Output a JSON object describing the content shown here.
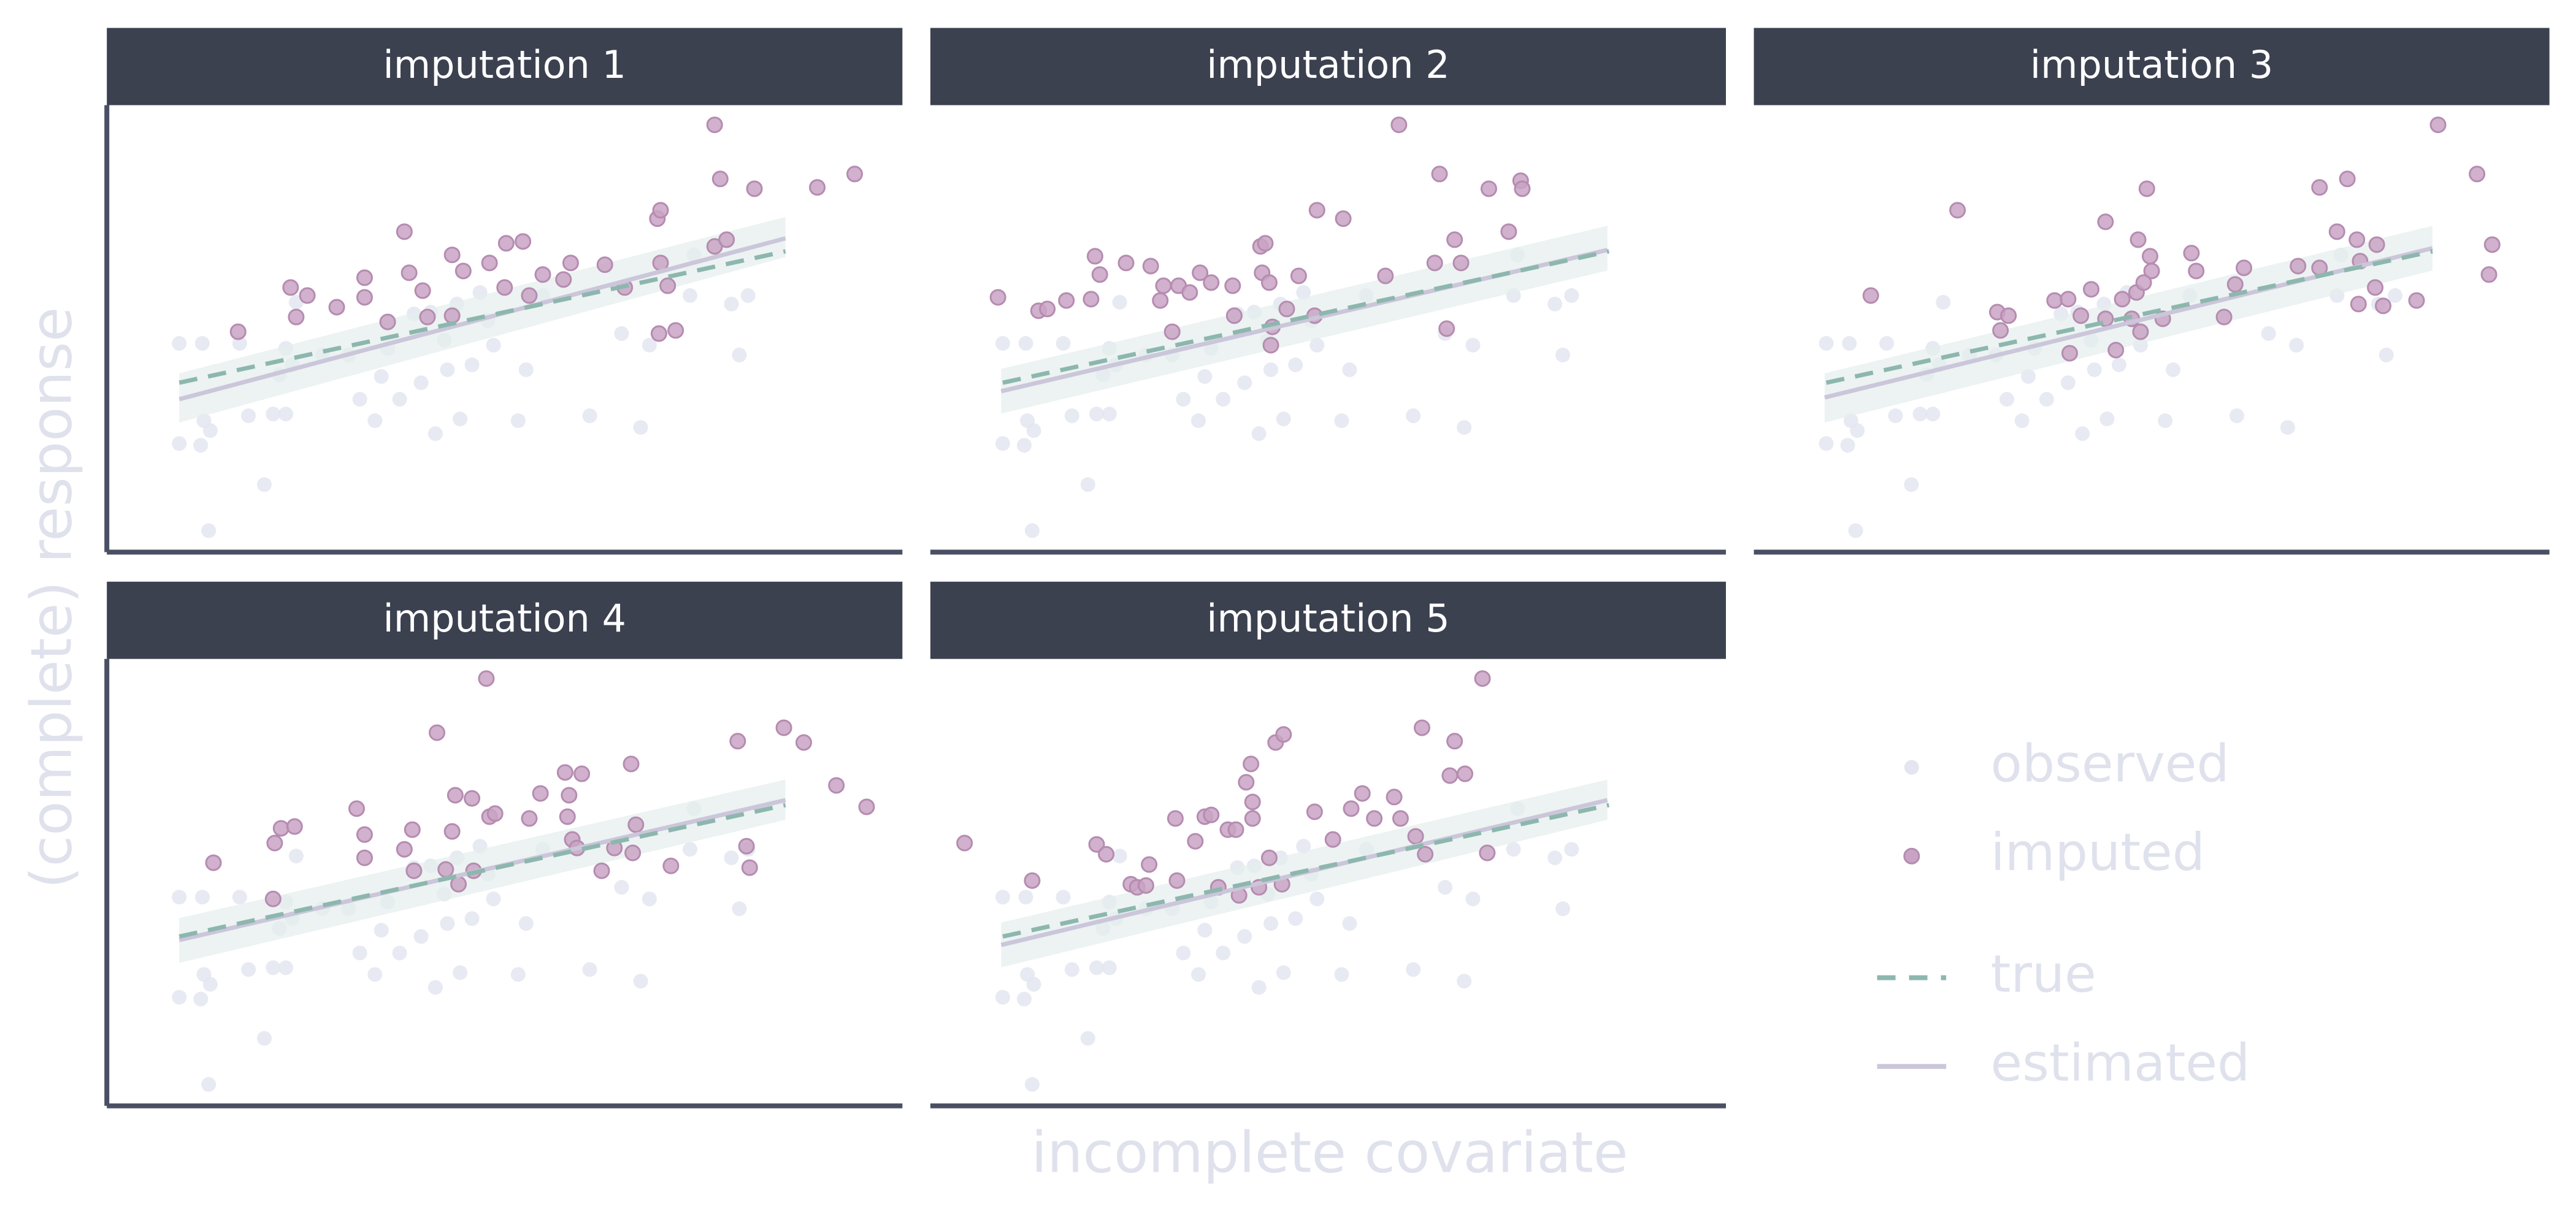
{
  "chart_data": {
    "type": "scatter",
    "x_label": "incomplete covariate",
    "y_label": "(complete) response",
    "xlim": [
      0,
      100
    ],
    "ylim": [
      0,
      100
    ],
    "observed": {
      "name": "observed",
      "color": "#e3e6f0",
      "x": [
        9.1,
        12.0,
        9.1,
        11.8,
        13.0,
        12.2,
        12.8,
        19.8,
        17.8,
        20.9,
        22.5,
        16.7,
        21.7,
        23.3,
        22.5,
        23.8,
        27.1,
        30.4,
        31.8,
        33.7,
        34.5,
        35.3,
        36.8,
        38.6,
        39.5,
        40.7,
        41.3,
        42.4,
        42.8,
        44.0,
        44.4,
        45.9,
        46.9,
        47.9,
        48.6,
        51.7,
        52.7,
        54.8,
        60.7,
        64.7,
        67.1,
        68.2,
        73.3,
        79.5,
        80.6,
        73.8,
        78.5
      ],
      "y": [
        46.7,
        46.7,
        24.3,
        23.9,
        27.2,
        29.4,
        4.8,
        15.1,
        30.5,
        30.9,
        30.9,
        46.7,
        39.7,
        41.9,
        45.6,
        55.9,
        44.1,
        44.1,
        34.2,
        29.4,
        39.3,
        45.6,
        34.2,
        53.3,
        37.9,
        53.7,
        26.5,
        47.4,
        40.8,
        55.5,
        29.8,
        41.9,
        58.1,
        51.8,
        46.3,
        29.4,
        40.8,
        57.4,
        30.5,
        48.9,
        27.9,
        46.3,
        57.4,
        44.1,
        57.4,
        66.5,
        55.5
      ]
    },
    "imputed": {
      "name": "imputed",
      "color": "#c9a3c4"
    },
    "true": {
      "name": "true",
      "color": "#8db7ae",
      "x": [
        9.1,
        85.3
      ],
      "y": [
        37.9,
        67.3
      ]
    },
    "estimated": {
      "name": "estimated",
      "color": "#cbc6da",
      "band_color": "#e4eeed"
    },
    "panels": [
      {
        "title": "imputation 1",
        "imputed": {
          "x": [
            16.5,
            23.1,
            23.8,
            25.2,
            28.9,
            32.4,
            32.4,
            37.4,
            38.0,
            35.3,
            39.7,
            40.3,
            43.4,
            43.4,
            44.8,
            48.1,
            50.2,
            52.3,
            50.0,
            53.1,
            57.4,
            58.3,
            54.8,
            62.6,
            65.1,
            69.6,
            70.5,
            69.2,
            69.6,
            69.4,
            71.5,
            76.4,
            77.9,
            77.1,
            81.4,
            76.4,
            89.3,
            94.0
          ],
          "y": [
            49.3,
            59.2,
            52.6,
            57.4,
            54.8,
            57.0,
            61.4,
            71.7,
            62.5,
            51.5,
            58.5,
            52.6,
            52.9,
            66.5,
            62.9,
            64.7,
            69.1,
            69.5,
            59.2,
            57.4,
            61.0,
            64.7,
            62.1,
            64.3,
            59.2,
            64.7,
            59.6,
            74.6,
            76.5,
            48.9,
            49.6,
            68.4,
            69.9,
            83.5,
            81.3,
            95.6,
            81.6,
            84.6
          ]
        },
        "estimated": {
          "x": [
            9.1,
            85.3
          ],
          "y": [
            34.2,
            70.2
          ],
          "lower": [
            29,
            66
          ],
          "upper": [
            40,
            75
          ]
        }
      },
      {
        "title": "imputation 2",
        "imputed": {
          "x": [
            8.5,
            13.6,
            14.7,
            17.1,
            20.2,
            21.3,
            20.7,
            24.6,
            27.7,
            29.3,
            28.9,
            31.2,
            32.6,
            33.9,
            35.3,
            38.0,
            38.2,
            30.4,
            41.5,
            42.1,
            41.7,
            42.6,
            43.0,
            42.8,
            44.8,
            46.3,
            48.3,
            48.6,
            51.9,
            57.2,
            58.9,
            64.0,
            63.4,
            65.9,
            66.7,
            64.9,
            70.2,
            72.7,
            74.2,
            74.4
          ],
          "y": [
            57.0,
            54.0,
            54.4,
            56.3,
            56.6,
            62.1,
            66.2,
            64.7,
            64.0,
            59.6,
            56.3,
            59.6,
            58.1,
            62.5,
            60.3,
            59.6,
            52.9,
            49.3,
            68.4,
            69.1,
            62.5,
            60.3,
            50.4,
            46.3,
            54.4,
            61.8,
            52.9,
            76.5,
            74.6,
            61.8,
            95.6,
            84.6,
            64.7,
            69.9,
            64.7,
            50.0,
            81.3,
            71.7,
            83.1,
            81.3
          ]
        },
        "estimated": {
          "x": [
            8.9,
            85.1
          ],
          "y": [
            36.0,
            67.6
          ],
          "lower": [
            31,
            63
          ],
          "upper": [
            41,
            73
          ]
        }
      },
      {
        "title": "imputation 3",
        "imputed": {
          "x": [
            14.7,
            25.6,
            30.6,
            31.0,
            32.0,
            37.8,
            39.5,
            39.7,
            41.1,
            42.4,
            44.2,
            46.3,
            44.2,
            48.3,
            49.8,
            50.0,
            48.1,
            47.5,
            48.6,
            45.5,
            49.0,
            51.4,
            49.4,
            55.0,
            55.6,
            60.5,
            61.6,
            59.1,
            68.4,
            71.1,
            74.6,
            73.3,
            71.1,
            75.8,
            78.3,
            76.2,
            78.1,
            76.0,
            79.1,
            83.3,
            86.0,
            90.9,
            92.8,
            92.4
          ],
          "y": [
            57.4,
            76.5,
            53.7,
            49.6,
            52.9,
            56.3,
            56.6,
            44.5,
            52.9,
            58.8,
            52.2,
            56.6,
            73.9,
            69.9,
            66.2,
            62.9,
            58.1,
            52.2,
            49.3,
            45.2,
            60.3,
            52.2,
            81.3,
            66.9,
            62.9,
            59.9,
            63.6,
            52.6,
            64.0,
            81.6,
            83.5,
            71.7,
            63.6,
            69.9,
            68.8,
            65.1,
            59.2,
            55.5,
            55.1,
            56.3,
            95.6,
            84.6,
            68.8,
            62.1
          ]
        },
        "estimated": {
          "x": [
            8.9,
            85.3
          ],
          "y": [
            34.6,
            68.0
          ],
          "lower": [
            29,
            63
          ],
          "upper": [
            40,
            73
          ]
        }
      },
      {
        "title": "imputation 4",
        "imputed": {
          "x": [
            13.4,
            21.1,
            21.9,
            23.6,
            20.9,
            31.4,
            32.4,
            32.4,
            37.4,
            41.5,
            38.4,
            38.6,
            43.4,
            43.8,
            45.9,
            42.6,
            44.2,
            46.1,
            47.7,
            48.1,
            48.8,
            53.1,
            54.5,
            58.1,
            57.9,
            57.6,
            59.7,
            58.5,
            62.2,
            63.8,
            65.9,
            66.5,
            66.1,
            70.9,
            79.3,
            80.4,
            80.8,
            85.1,
            87.6,
            91.7,
            95.5,
            59.1
          ],
          "y": [
            54.4,
            58.8,
            62.1,
            62.5,
            46.3,
            66.5,
            60.7,
            55.5,
            57.4,
            83.5,
            61.8,
            52.6,
            61.4,
            69.5,
            68.8,
            52.9,
            49.6,
            52.6,
            95.6,
            64.7,
            65.4,
            64.3,
            69.9,
            69.5,
            64.7,
            74.6,
            74.3,
            59.6,
            52.6,
            57.7,
            76.5,
            62.9,
            56.6,
            53.7,
            81.6,
            58.1,
            53.3,
            84.6,
            81.3,
            71.7,
            66.9,
            57.7
          ]
        },
        "estimated": {
          "x": [
            9.1,
            85.3
          ],
          "y": [
            37.1,
            68.4
          ],
          "lower": [
            32,
            64
          ],
          "upper": [
            42,
            73
          ]
        }
      },
      {
        "title": "imputation 5",
        "imputed": {
          "x": [
            4.3,
            12.8,
            20.9,
            22.1,
            25.2,
            26.0,
            27.5,
            27.1,
            30.8,
            33.3,
            34.5,
            35.3,
            37.4,
            38.4,
            38.8,
            40.3,
            39.7,
            40.5,
            40.5,
            43.4,
            44.4,
            42.6,
            44.2,
            48.3,
            50.6,
            52.9,
            54.3,
            55.8,
            58.3,
            59.1,
            61.0,
            61.8,
            62.2,
            65.3,
            65.9,
            67.2,
            69.4,
            70.0,
            41.3,
            36.2,
            31.0
          ],
          "y": [
            58.8,
            50.4,
            58.5,
            56.3,
            49.6,
            48.9,
            54.0,
            49.3,
            64.3,
            59.2,
            64.7,
            65.1,
            61.8,
            61.8,
            47.1,
            76.5,
            72.4,
            68.0,
            64.3,
            81.3,
            83.1,
            55.5,
            49.6,
            65.8,
            59.6,
            66.5,
            69.9,
            64.3,
            69.1,
            64.3,
            60.3,
            84.6,
            56.3,
            73.9,
            81.6,
            74.3,
            95.6,
            56.6,
            48.9,
            48.9,
            50.4
          ]
        },
        "estimated": {
          "x": [
            8.9,
            85.1
          ],
          "y": [
            36.0,
            68.4
          ],
          "lower": [
            31,
            64
          ],
          "upper": [
            41,
            73
          ]
        }
      }
    ]
  }
}
